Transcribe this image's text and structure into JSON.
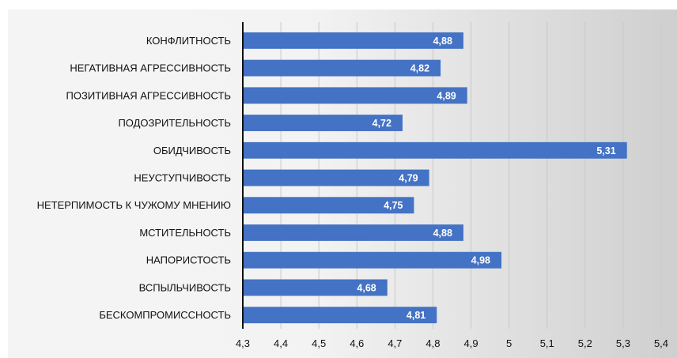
{
  "chart_data": {
    "type": "bar",
    "orientation": "horizontal",
    "categories": [
      "КОНФЛИТНОСТЬ",
      "НЕГАТИВНАЯ АГРЕССИВНОСТЬ",
      "ПОЗИТИВНАЯ АГРЕССИВНОСТЬ",
      "ПОДОЗРИТЕЛЬНОСТЬ",
      "ОБИДЧИВОСТЬ",
      "НЕУСТУПЧИВОСТЬ",
      "НЕТЕРПИМОСТЬ К ЧУЖОМУ МНЕНИЮ",
      "МСТИТЕЛЬНОСТЬ",
      "НАПОРИСТОСТЬ",
      "ВСПЫЛЬЧИВОСТЬ",
      "БЕСКОМПРОМИССНОСТЬ"
    ],
    "values": [
      4.88,
      4.82,
      4.89,
      4.72,
      5.31,
      4.79,
      4.75,
      4.88,
      4.98,
      4.68,
      4.81
    ],
    "value_labels": [
      "4,88",
      "4,82",
      "4,89",
      "4,72",
      "5,31",
      "4,79",
      "4,75",
      "4,88",
      "4,98",
      "4,68",
      "4,81"
    ],
    "xlim": [
      4.3,
      5.4
    ],
    "x_ticks": [
      4.3,
      4.4,
      4.5,
      4.6,
      4.7,
      4.8,
      4.9,
      5.0,
      5.1,
      5.2,
      5.3,
      5.4
    ],
    "x_tick_labels": [
      "4,3",
      "4,4",
      "4,5",
      "4,6",
      "4,7",
      "4,8",
      "4,9",
      "5",
      "5,1",
      "5,2",
      "5,3",
      "5,4"
    ],
    "title": "",
    "xlabel": "",
    "ylabel": "",
    "grid": "vertical",
    "legend": "none",
    "colors": {
      "bar": "#4472c4",
      "bar_label": "#ffffff",
      "grid": "#c8c8c8",
      "axis": "#111111"
    }
  }
}
